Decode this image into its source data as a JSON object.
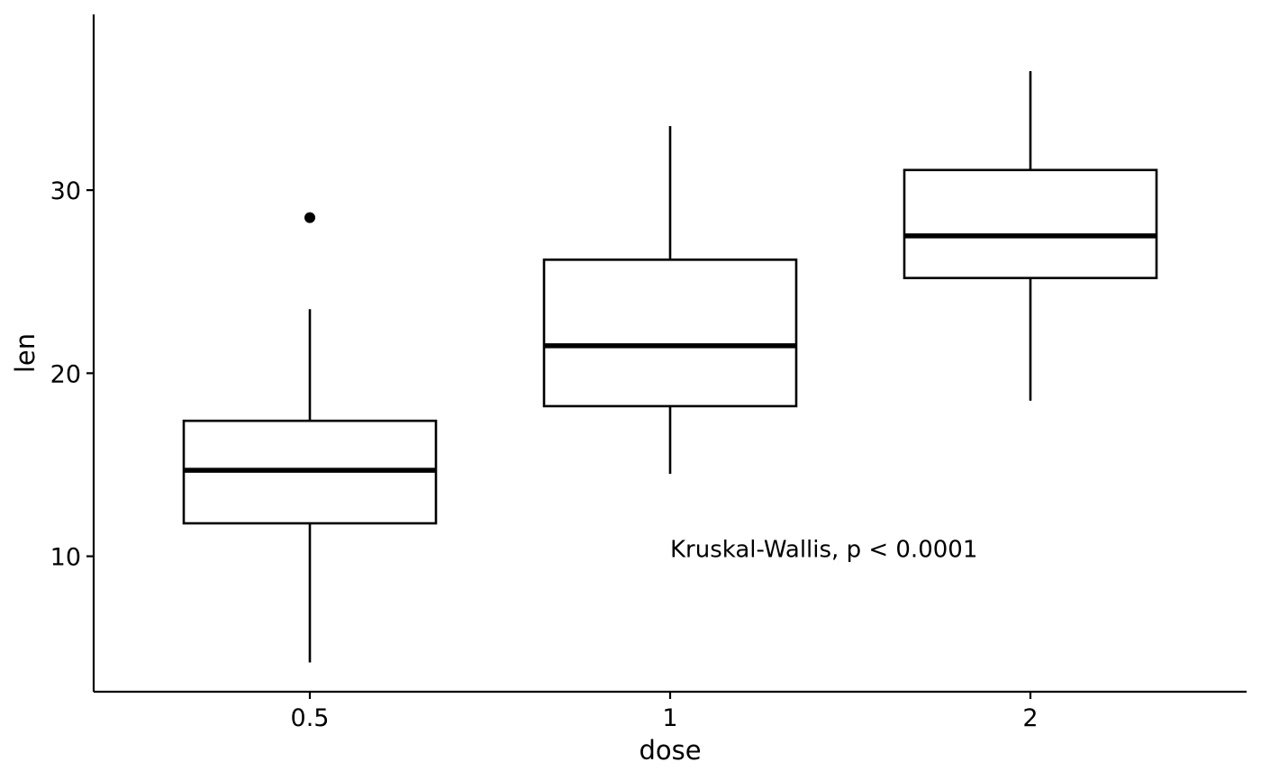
{
  "chart_data": {
    "type": "boxplot",
    "title": "",
    "xlabel": "dose",
    "ylabel": "len",
    "categories": [
      "0.5",
      "1",
      "2"
    ],
    "ylim": [
      2.6,
      39.6
    ],
    "yticks": [
      10,
      20,
      30
    ],
    "grid": false,
    "boxes": [
      {
        "category": "0.5",
        "whisker_low": 4.2,
        "q1": 11.8,
        "median": 14.7,
        "q3": 17.4,
        "whisker_high": 23.5,
        "outliers": [
          28.5
        ]
      },
      {
        "category": "1",
        "whisker_low": 14.5,
        "q1": 18.2,
        "median": 21.5,
        "q3": 26.2,
        "whisker_high": 33.5,
        "outliers": []
      },
      {
        "category": "2",
        "whisker_low": 18.5,
        "q1": 25.2,
        "median": 27.5,
        "q3": 31.1,
        "whisker_high": 36.5,
        "outliers": []
      }
    ],
    "annotation": {
      "text": "Kruskal-Wallis, p < 0.0001",
      "x": 1.0,
      "y": 10.4
    }
  },
  "colors": {
    "line": "#000000",
    "box_fill": "#ffffff",
    "background": "#ffffff"
  }
}
